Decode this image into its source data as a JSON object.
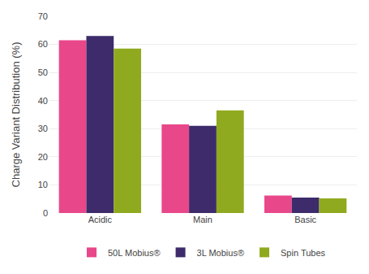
{
  "chart_data": {
    "type": "bar",
    "ylabel": "Charge Variant Distribution (%)",
    "categories": [
      "Acidic",
      "Main",
      "Basic"
    ],
    "series": [
      {
        "name": "50L Mobius®",
        "color": "#e8478a",
        "values": [
          61.5,
          31.5,
          6.2
        ]
      },
      {
        "name": "3L Mobius®",
        "color": "#3d2b6b",
        "values": [
          63.0,
          31.0,
          5.5
        ]
      },
      {
        "name": "Spin Tubes",
        "color": "#8faa1e",
        "values": [
          58.5,
          36.5,
          5.2
        ]
      }
    ],
    "ylim": [
      0,
      70
    ],
    "yticks": [
      0,
      10,
      20,
      30,
      40,
      50,
      60,
      70
    ],
    "grid": true,
    "legend": "bottom"
  }
}
